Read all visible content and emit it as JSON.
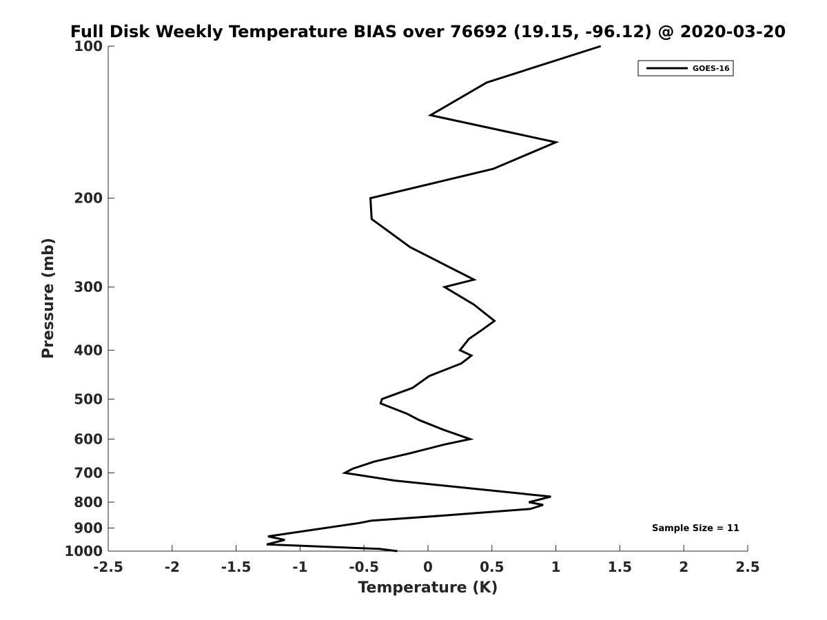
{
  "chart_data": {
    "type": "line",
    "title": "Full Disk Weekly Temperature BIAS over 76692 (19.15, -96.12) @ 2020-03-20",
    "xlabel": "Temperature (K)",
    "ylabel": "Pressure (mb)",
    "xlim": [
      -2.5,
      2.5
    ],
    "ylim": [
      100,
      1000
    ],
    "yscale": "log",
    "y_reversed": true,
    "grid": false,
    "legend_position": "top-right",
    "x_ticks": [
      "-2.5",
      "-2",
      "-1.5",
      "-1",
      "-0.5",
      "0",
      "0.5",
      "1",
      "1.5",
      "2",
      "2.5"
    ],
    "x_tick_values": [
      -2.5,
      -2,
      -1.5,
      -1,
      -0.5,
      0,
      0.5,
      1,
      1.5,
      2,
      2.5
    ],
    "y_ticks": [
      "100",
      "200",
      "300",
      "400",
      "500",
      "600",
      "700",
      "800",
      "900",
      "1000"
    ],
    "y_tick_values": [
      100,
      200,
      300,
      400,
      500,
      600,
      700,
      800,
      900,
      1000
    ],
    "series": [
      {
        "name": "GOES-16",
        "color": "#000000",
        "points": [
          {
            "x": 1.35,
            "y": 100
          },
          {
            "x": 0.46,
            "y": 118
          },
          {
            "x": 0.02,
            "y": 137
          },
          {
            "x": 1.0,
            "y": 155
          },
          {
            "x": 0.51,
            "y": 175
          },
          {
            "x": -0.45,
            "y": 200
          },
          {
            "x": -0.44,
            "y": 220
          },
          {
            "x": -0.14,
            "y": 250
          },
          {
            "x": 0.18,
            "y": 275
          },
          {
            "x": 0.36,
            "y": 290
          },
          {
            "x": 0.13,
            "y": 300
          },
          {
            "x": 0.36,
            "y": 325
          },
          {
            "x": 0.52,
            "y": 350
          },
          {
            "x": 0.42,
            "y": 365
          },
          {
            "x": 0.32,
            "y": 380
          },
          {
            "x": 0.25,
            "y": 400
          },
          {
            "x": 0.34,
            "y": 410
          },
          {
            "x": 0.26,
            "y": 425
          },
          {
            "x": 0.01,
            "y": 450
          },
          {
            "x": -0.12,
            "y": 475
          },
          {
            "x": -0.36,
            "y": 500
          },
          {
            "x": -0.37,
            "y": 510
          },
          {
            "x": -0.16,
            "y": 535
          },
          {
            "x": -0.07,
            "y": 550
          },
          {
            "x": 0.12,
            "y": 575
          },
          {
            "x": 0.33,
            "y": 600
          },
          {
            "x": 0.13,
            "y": 615
          },
          {
            "x": -0.14,
            "y": 640
          },
          {
            "x": -0.42,
            "y": 665
          },
          {
            "x": -0.59,
            "y": 687
          },
          {
            "x": -0.65,
            "y": 700
          },
          {
            "x": -0.26,
            "y": 725
          },
          {
            "x": 0.96,
            "y": 780
          },
          {
            "x": 0.79,
            "y": 800
          },
          {
            "x": 0.9,
            "y": 810
          },
          {
            "x": 0.8,
            "y": 825
          },
          {
            "x": 0.13,
            "y": 850
          },
          {
            "x": -0.44,
            "y": 870
          },
          {
            "x": -0.54,
            "y": 880
          },
          {
            "x": -1.25,
            "y": 935
          },
          {
            "x": -1.12,
            "y": 950
          },
          {
            "x": -1.26,
            "y": 970
          },
          {
            "x": -0.38,
            "y": 990
          },
          {
            "x": -0.24,
            "y": 1000
          }
        ]
      }
    ],
    "annotation": "Sample Size = 11"
  }
}
